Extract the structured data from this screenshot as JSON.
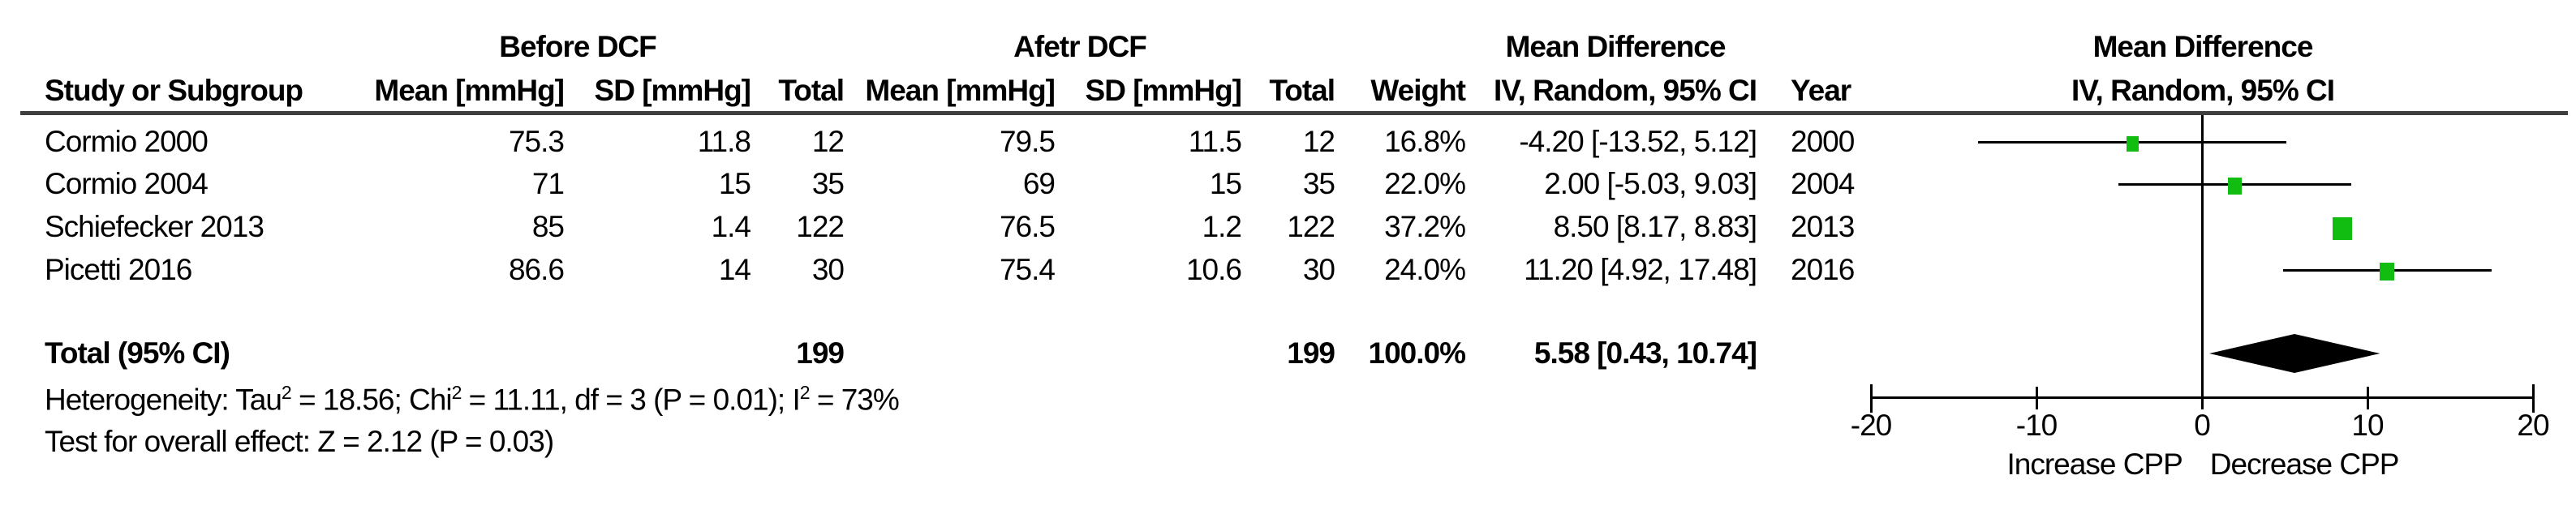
{
  "table": {
    "group_headers": {
      "before": "Before DCF",
      "after": "Afetr DCF",
      "md_table_line1": "Mean Difference",
      "md_plot_line1": "Mean Difference"
    },
    "col_headers": {
      "study": "Study or Subgroup",
      "mean1": "Mean [mmHg]",
      "sd1": "SD [mmHg]",
      "total1": "Total",
      "mean2": "Mean [mmHg]",
      "sd2": "SD [mmHg]",
      "total2": "Total",
      "weight": "Weight",
      "ci": "IV, Random, 95% CI",
      "year": "Year",
      "ci_plot": "IV, Random, 95% CI"
    },
    "rows": [
      {
        "study": "Cormio 2000",
        "mean1": "75.3",
        "sd1": "11.8",
        "total1": "12",
        "mean2": "79.5",
        "sd2": "11.5",
        "total2": "12",
        "weight": "16.8%",
        "ci": "-4.20 [-13.52, 5.12]",
        "year": "2000"
      },
      {
        "study": "Cormio 2004",
        "mean1": "71",
        "sd1": "15",
        "total1": "35",
        "mean2": "69",
        "sd2": "15",
        "total2": "35",
        "weight": "22.0%",
        "ci": "2.00 [-5.03, 9.03]",
        "year": "2004"
      },
      {
        "study": "Schiefecker 2013",
        "mean1": "85",
        "sd1": "1.4",
        "total1": "122",
        "mean2": "76.5",
        "sd2": "1.2",
        "total2": "122",
        "weight": "37.2%",
        "ci": "8.50 [8.17, 8.83]",
        "year": "2013"
      },
      {
        "study": "Picetti 2016",
        "mean1": "86.6",
        "sd1": "14",
        "total1": "30",
        "mean2": "75.4",
        "sd2": "10.6",
        "total2": "30",
        "weight": "24.0%",
        "ci": "11.20 [4.92, 17.48]",
        "year": "2016"
      }
    ],
    "total_row": {
      "label": "Total (95% CI)",
      "total1": "199",
      "total2": "199",
      "weight": "100.0%",
      "ci": "5.58 [0.43, 10.74]"
    },
    "footer": {
      "het_parts": [
        "Heterogeneity: Tau",
        "2",
        " = 18.56; Chi",
        "2",
        " = 11.11, df = 3 (P = 0.01); I",
        "2",
        " = 73%"
      ],
      "test": "Test for overall effect: Z = 2.12 (P = 0.03)"
    }
  },
  "chart_data": {
    "type": "forest",
    "title": "Mean Difference",
    "subtitle": "IV, Random, 95% CI",
    "effect_measure": "Mean Difference, IV, Random, 95% CI",
    "xlim": [
      -20,
      20
    ],
    "axis_ticks": [
      -20,
      -10,
      0,
      10,
      20
    ],
    "xlabel_left": "Increase CPP",
    "xlabel_right": "Decrease CPP",
    "marker_color": "#12bd12",
    "line_color": "#000000",
    "studies": [
      {
        "name": "Cormio 2000",
        "year": 2000,
        "md": -4.2,
        "ci_low": -13.52,
        "ci_high": 5.12,
        "weight": 16.8
      },
      {
        "name": "Cormio 2004",
        "year": 2004,
        "md": 2.0,
        "ci_low": -5.03,
        "ci_high": 9.03,
        "weight": 22.0
      },
      {
        "name": "Schiefecker 2013",
        "year": 2013,
        "md": 8.5,
        "ci_low": 8.17,
        "ci_high": 8.83,
        "weight": 37.2
      },
      {
        "name": "Picetti 2016",
        "year": 2016,
        "md": 11.2,
        "ci_low": 4.92,
        "ci_high": 17.48,
        "weight": 24.0
      }
    ],
    "total": {
      "md": 5.58,
      "ci_low": 0.43,
      "ci_high": 10.74,
      "weight": 100.0
    },
    "heterogeneity": {
      "tau2": 18.56,
      "chi2": 11.11,
      "df": 3,
      "p": 0.01,
      "i2_pct": 73
    },
    "overall_effect": {
      "z": 2.12,
      "p": 0.03
    }
  }
}
